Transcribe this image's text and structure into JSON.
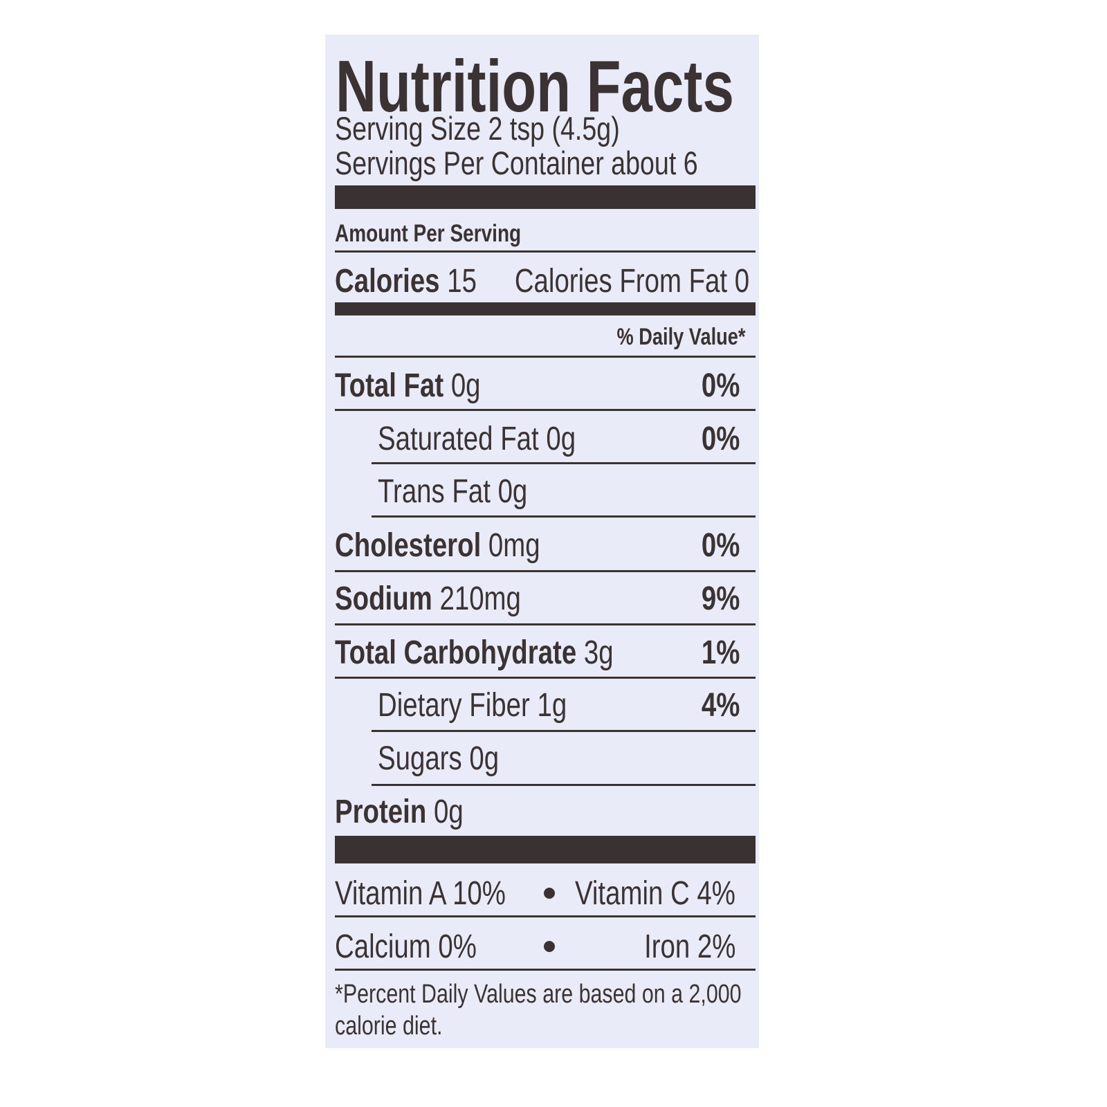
{
  "title": "Nutrition Facts",
  "serving_size": "Serving Size 2 tsp (4.5g)",
  "servings_per_container": "Servings Per Container about 6",
  "amount_per_serving": "Amount Per Serving",
  "calories": {
    "label": "Calories",
    "value": "15",
    "from_fat": "Calories From Fat 0"
  },
  "daily_value_header": "% Daily Value*",
  "nutrients": [
    {
      "label": "Total Fat",
      "amount": "0g",
      "dv": "0%"
    },
    {
      "label": "Saturated Fat",
      "amount": "0g",
      "dv": "0%"
    },
    {
      "label": "Trans Fat",
      "amount": "0g",
      "dv": ""
    },
    {
      "label": "Cholesterol",
      "amount": "0mg",
      "dv": "0%"
    },
    {
      "label": "Sodium",
      "amount": "210mg",
      "dv": "9%"
    },
    {
      "label": "Total Carbohydrate",
      "amount": "3g",
      "dv": "1%"
    },
    {
      "label": "Dietary Fiber",
      "amount": "1g",
      "dv": "4%"
    },
    {
      "label": "Sugars",
      "amount": "0g",
      "dv": ""
    },
    {
      "label": "Protein",
      "amount": "0g",
      "dv": ""
    }
  ],
  "vitamins": {
    "vitamin_a": "Vitamin A 10%",
    "vitamin_c": "Vitamin C 4%",
    "calcium": "Calcium 0%",
    "iron": "Iron 2%"
  },
  "footnote": {
    "line1": "*Percent Daily Values are based on a 2,000",
    "line2": "calorie diet."
  },
  "colors": {
    "background": "#e9ecf8",
    "ink": "#3a3133"
  }
}
